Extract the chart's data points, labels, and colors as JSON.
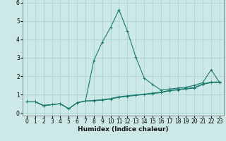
{
  "xlabel": "Humidex (Indice chaleur)",
  "ylabel": "",
  "background_color": "#cce9e8",
  "grid_color": "#aad4d2",
  "line_color": "#1a7a6e",
  "xlim": [
    -0.5,
    23.5
  ],
  "ylim": [
    -0.15,
    6.3
  ],
  "xticks": [
    0,
    1,
    2,
    3,
    4,
    5,
    6,
    7,
    8,
    9,
    10,
    11,
    12,
    13,
    14,
    15,
    16,
    17,
    18,
    19,
    20,
    21,
    22,
    23
  ],
  "yticks": [
    0,
    1,
    2,
    3,
    4,
    5,
    6
  ],
  "curves": [
    [
      0.6,
      0.6,
      0.4,
      0.45,
      0.5,
      0.22,
      0.55,
      0.65,
      2.85,
      3.85,
      4.65,
      5.62,
      4.45,
      3.05,
      1.9,
      1.55,
      1.25,
      1.3,
      1.35,
      1.4,
      1.5,
      1.65,
      2.35,
      1.65
    ],
    [
      0.6,
      0.6,
      0.4,
      0.45,
      0.5,
      0.22,
      0.55,
      0.65,
      0.65,
      0.7,
      0.75,
      0.85,
      0.9,
      0.95,
      1.0,
      1.05,
      1.1,
      1.2,
      1.25,
      1.3,
      1.35,
      1.55,
      1.65,
      1.65
    ],
    [
      0.6,
      0.6,
      0.4,
      0.45,
      0.5,
      0.22,
      0.55,
      0.65,
      0.68,
      0.72,
      0.78,
      0.88,
      0.93,
      0.98,
      1.02,
      1.08,
      1.13,
      1.22,
      1.28,
      1.33,
      1.38,
      1.58,
      1.68,
      1.68
    ]
  ],
  "tick_fontsize": 5.5,
  "xlabel_fontsize": 6.5,
  "marker_size": 2.5,
  "line_width": 0.8
}
